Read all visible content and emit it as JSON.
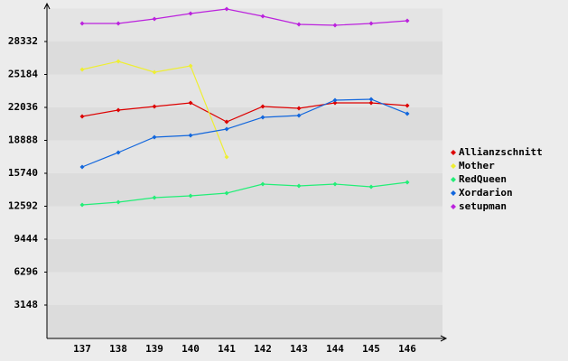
{
  "chart_data": {
    "type": "line",
    "categories": [
      "137",
      "138",
      "139",
      "140",
      "141",
      "142",
      "143",
      "144",
      "145",
      "146"
    ],
    "series": [
      {
        "name": "Allianzschnitt",
        "color": "#dd0000",
        "values": [
          21174,
          21777,
          22122,
          22467,
          20656,
          22122,
          21950,
          22467,
          22467,
          22208
        ]
      },
      {
        "name": "Mother",
        "color": "#eeee33",
        "values": [
          25658,
          26434,
          25399,
          26003,
          17292,
          null,
          null,
          null,
          null,
          null
        ]
      },
      {
        "name": "RedQueen",
        "color": "#22ee77",
        "values": [
          12721,
          12980,
          13411,
          13583,
          13842,
          14705,
          14532,
          14705,
          14446,
          14877
        ]
      },
      {
        "name": "Xordarion",
        "color": "#1166dd",
        "values": [
          16344,
          17724,
          19190,
          19363,
          19967,
          21088,
          21260,
          22726,
          22812,
          21433
        ]
      },
      {
        "name": "setupman",
        "color": "#bb22dd",
        "values": [
          30057,
          30057,
          30488,
          31006,
          31437,
          30747,
          29971,
          29885,
          30057,
          30316
        ]
      }
    ],
    "ylim": [
      0,
      31480
    ],
    "yticks": [
      3148,
      6296,
      9444,
      12592,
      15740,
      18888,
      22036,
      25184,
      28332
    ],
    "grid": true,
    "legend": "right"
  }
}
